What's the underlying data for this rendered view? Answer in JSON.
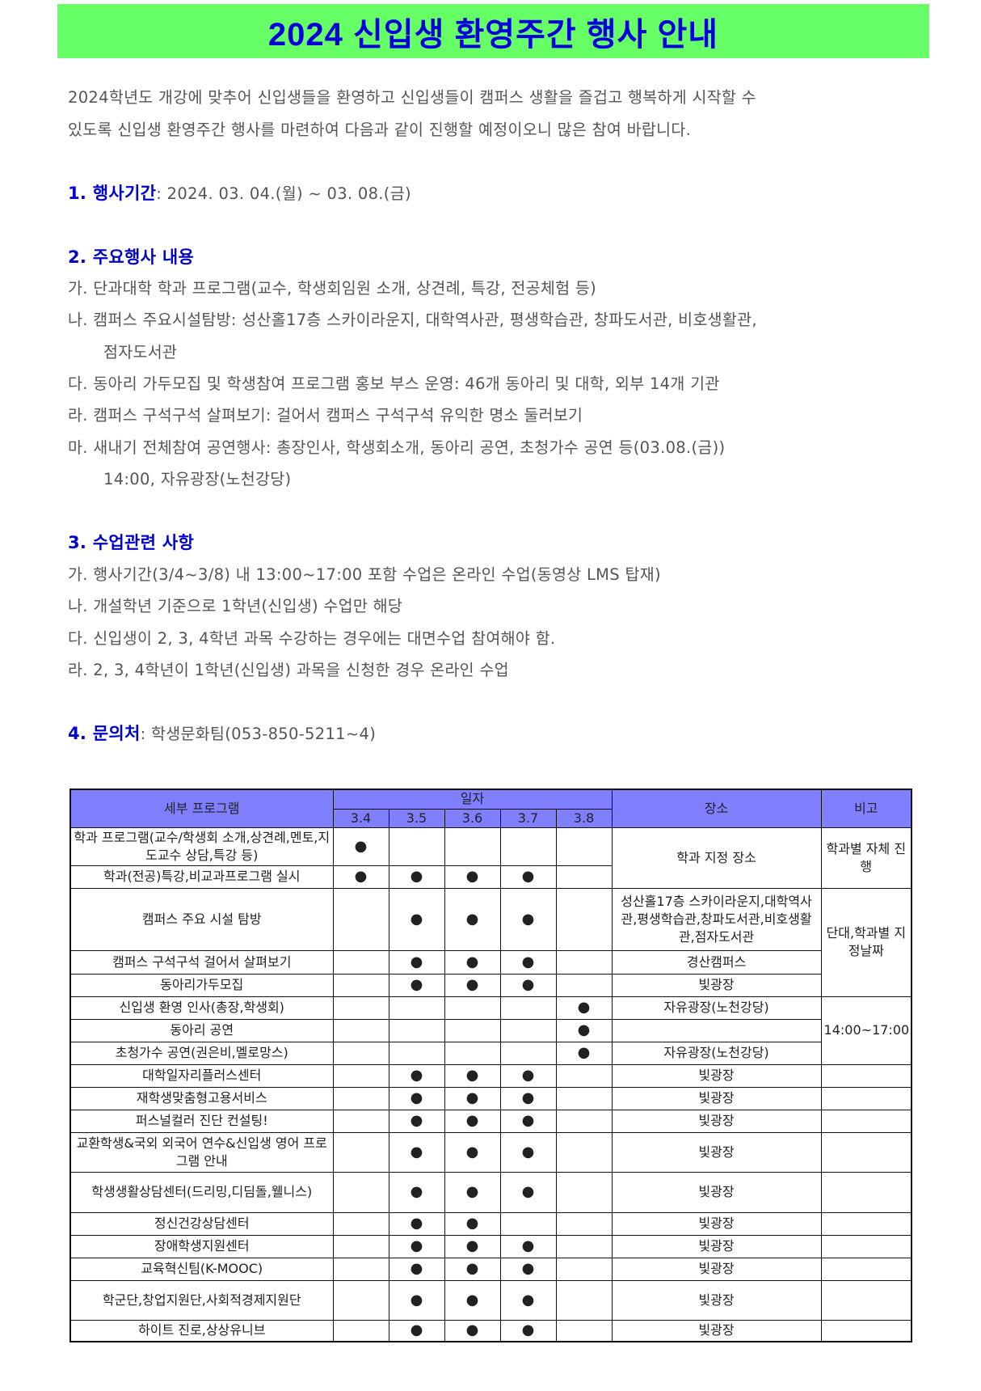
{
  "title": "2024 신입생 환영주간 행사 안내",
  "intro": [
    "2024학년도 개강에 맞추어 신입생들을 환영하고 신입생들이 캠퍼스 생활을 즐겁고 행복하게 시작할 수",
    "있도록 신입생 환영주간 행사를 마련하여 다음과 같이 진행할 예정이오니 많은 참여 바랍니다."
  ],
  "section1": {
    "heading": "1. 행사기간",
    "text": ": 2024. 03. 04.(월) ~ 03. 08.(금)"
  },
  "section2": {
    "heading": "2. 주요행사 내용",
    "items": [
      "가. 단과대학 학과 프로그램(교수, 학생회임원 소개, 상견례, 특강, 전공체험 등)",
      "나. 캠퍼스 주요시설탐방: 성산홀17층 스카이라운지, 대학역사관, 평생학습관, 창파도서관, 비호생활관,",
      "점자도서관",
      "다. 동아리 가두모집 및 학생참여 프로그램 홍보 부스 운영: 46개 동아리 및 대학, 외부 14개 기관",
      "라. 캠퍼스 구석구석 살펴보기: 걸어서 캠퍼스 구석구석 유익한 명소 둘러보기",
      "마. 새내기 전체참여 공연행사: 총장인사, 학생회소개, 동아리 공연, 초청가수 공연 등(03.08.(금))",
      "14:00, 자유광장(노천강당)"
    ]
  },
  "section3": {
    "heading": "3. 수업관련 사항",
    "items": [
      "가. 행사기간(3/4~3/8) 내 13:00~17:00 포함 수업은 온라인 수업(동영상 LMS 탑재)",
      "나. 개설학년 기준으로 1학년(신입생) 수업만 해당",
      "다. 신입생이 2, 3, 4학년 과목 수강하는 경우에는 대면수업 참여해야 함.",
      "라. 2, 3, 4학년이 1학년(신입생) 과목을 신청한 경우 온라인 수업"
    ]
  },
  "section4": {
    "heading": "4. 문의처",
    "text": ": 학생문화팀(053-850-5211~4)"
  },
  "table": {
    "headers": {
      "program": "세부 프로그램",
      "date": "일자",
      "place": "장소",
      "note": "비고"
    },
    "dates": [
      "3.4",
      "3.5",
      "3.6",
      "3.7",
      "3.8"
    ],
    "mark": "●",
    "header_color": "#7f7fff",
    "rows": [
      {
        "program": "학과 프로그램(교수/학생회 소개,상견례,멘토,지도교수 상담,특강 등)",
        "days": [
          1,
          0,
          0,
          0,
          0
        ],
        "place": "학과 지정 장소",
        "note": "학과별 자체 진행"
      },
      {
        "program": "학과(전공)특강,비교과프로그램 실시",
        "days": [
          1,
          1,
          1,
          1,
          0
        ]
      },
      {
        "program": "캠퍼스 주요 시설 탐방",
        "days": [
          0,
          1,
          1,
          1,
          0
        ],
        "place": "성산홀17층 스카이라운지,대학역사관,평생학습관,창파도서관,비호생활관,점자도서관",
        "note": "단대,학과별 지정날짜"
      },
      {
        "program": "캠퍼스 구석구석 걸어서 살펴보기",
        "days": [
          0,
          1,
          1,
          1,
          0
        ],
        "place": "경산캠퍼스"
      },
      {
        "program": "동아리가두모집",
        "days": [
          0,
          1,
          1,
          1,
          0
        ],
        "place": "빛광장"
      },
      {
        "program": "신입생 환영 인사(총장,학생회)",
        "days": [
          0,
          0,
          0,
          0,
          1
        ],
        "place": "자유광장(노천강당)",
        "note": "14:00~17:00"
      },
      {
        "program": "동아리 공연",
        "days": [
          0,
          0,
          0,
          0,
          1
        ],
        "place": ""
      },
      {
        "program": "초청가수 공연(권은비,멜로망스)",
        "days": [
          0,
          0,
          0,
          0,
          1
        ],
        "place": "자유광장(노천강당)"
      },
      {
        "program": "대학일자리플러스센터",
        "days": [
          0,
          1,
          1,
          1,
          0
        ],
        "place": "빛광장",
        "note": ""
      },
      {
        "program": "재학생맞춤형고용서비스",
        "days": [
          0,
          1,
          1,
          1,
          0
        ],
        "place": "빛광장",
        "note": ""
      },
      {
        "program": "퍼스널컬러 진단 컨설팅!",
        "days": [
          0,
          1,
          1,
          1,
          0
        ],
        "place": "빛광장",
        "note": ""
      },
      {
        "program": "교환학생&국외 외국어 연수&신입생 영어 프로그램 안내",
        "days": [
          0,
          1,
          1,
          1,
          0
        ],
        "place": "빛광장",
        "note": ""
      },
      {
        "program": "학생생활상담센터(드리밍,디딤돌,웰니스)",
        "days": [
          0,
          1,
          1,
          1,
          0
        ],
        "place": "빛광장",
        "note": ""
      },
      {
        "program": "정신건강상담센터",
        "days": [
          0,
          1,
          1,
          0,
          0
        ],
        "place": "빛광장",
        "note": ""
      },
      {
        "program": "장애학생지원센터",
        "days": [
          0,
          1,
          1,
          1,
          0
        ],
        "place": "빛광장",
        "note": ""
      },
      {
        "program": "교육혁신팀(K-MOOC)",
        "days": [
          0,
          1,
          1,
          1,
          0
        ],
        "place": "빛광장",
        "note": ""
      },
      {
        "program": "학군단,창업지원단,사회적경제지원단",
        "days": [
          0,
          1,
          1,
          1,
          0
        ],
        "place": "빛광장",
        "note": ""
      },
      {
        "program": "하이트 진로,상상유니브",
        "days": [
          0,
          1,
          1,
          1,
          0
        ],
        "place": "빛광장",
        "note": ""
      }
    ]
  }
}
